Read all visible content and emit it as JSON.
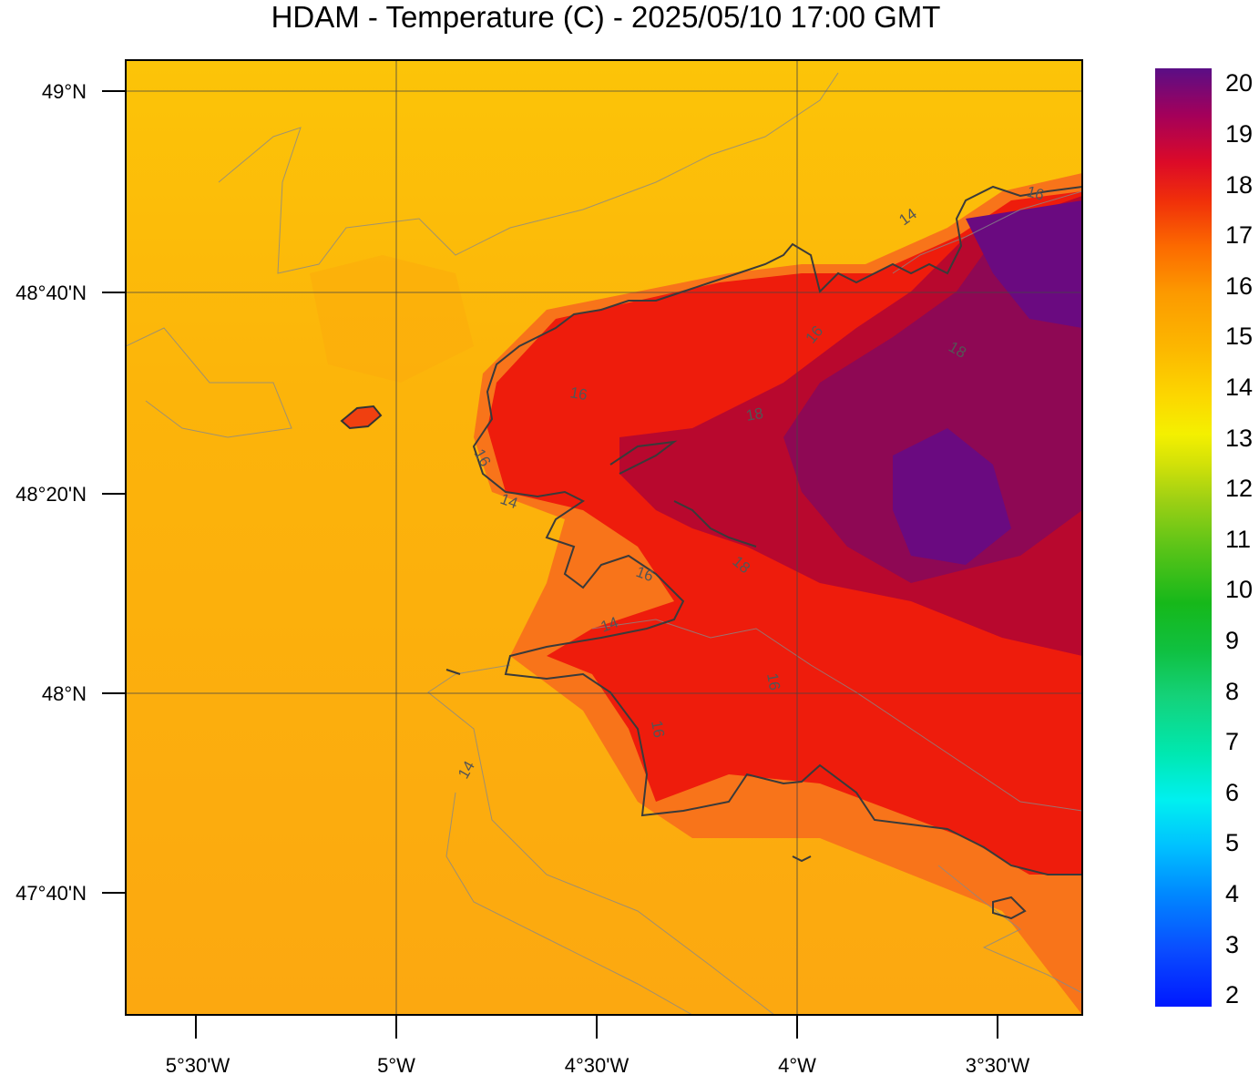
{
  "title": "HDAM - Temperature (C)  -  2025/05/10  17:00 GMT",
  "map": {
    "latitudes": [
      "49°N",
      "48°40'N",
      "48°20'N",
      "48°N",
      "47°40'N"
    ],
    "longitudes": [
      "5°30'W",
      "5°W",
      "4°30'W",
      "4°W",
      "3°30'W"
    ],
    "contour_labels": [
      "14",
      "14",
      "14",
      "14",
      "16",
      "16",
      "16",
      "16",
      "16",
      "16",
      "16",
      "18",
      "18",
      "18"
    ]
  },
  "colorbar": {
    "labels": [
      "20",
      "19",
      "18",
      "17",
      "16",
      "15",
      "14",
      "13",
      "12",
      "11",
      "10",
      "9",
      "8",
      "7",
      "6",
      "5",
      "4",
      "3",
      "2"
    ],
    "min": 2,
    "max": 20,
    "colors": [
      "#0018ff",
      "#0a4cff",
      "#0088ff",
      "#00c0ff",
      "#00e8f0",
      "#00e8b0",
      "#14d27a",
      "#10c040",
      "#16b81a",
      "#5cc418",
      "#9ed014",
      "#d4e208",
      "#f4f000",
      "#fcd700",
      "#fcb800",
      "#fc9a00",
      "#fc6a00",
      "#f02e0a",
      "#dc0a28",
      "#a4005a",
      "#5a0e86"
    ]
  }
}
